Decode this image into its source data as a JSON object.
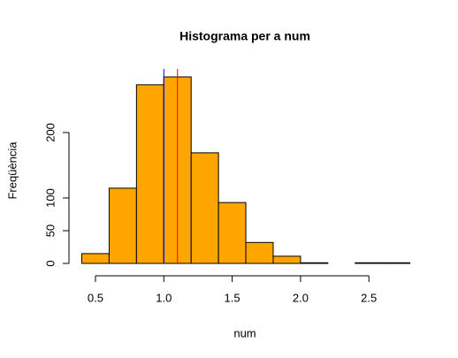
{
  "chart_data": {
    "type": "histogram",
    "title": "Histograma per a num",
    "xlabel": "num",
    "ylabel": "Freqüència",
    "bins": [
      0.4,
      0.6,
      0.8,
      1.0,
      1.2,
      1.4,
      1.6,
      1.8,
      2.0,
      2.2,
      2.4,
      2.6,
      2.8
    ],
    "values": [
      15,
      115,
      273,
      285,
      169,
      93,
      32,
      11,
      1,
      0,
      1,
      1
    ],
    "color": "#ffa500",
    "edgecolor": "#000000",
    "xlim": [
      0.4,
      2.8
    ],
    "xticks": [
      0.5,
      {
        "value": 1,
        "label": "1.0"
      },
      1.5,
      {
        "value": 2,
        "label": "2.0"
      },
      2.5
    ],
    "ylim": [
      0,
      285
    ],
    "yticks": [
      0,
      50,
      100,
      200
    ],
    "vlines": [
      {
        "value": 1.0,
        "color": "#0000ff"
      },
      {
        "value": 1.1,
        "color": "#ff0000"
      }
    ]
  }
}
